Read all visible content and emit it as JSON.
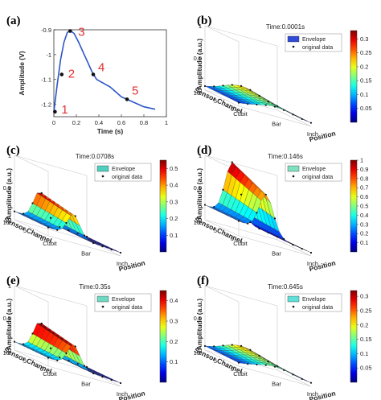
{
  "chart_data": [
    {
      "panel": "(a)",
      "type": "line",
      "xlabel": "Time (s)",
      "ylabel": "Amplitude (V)",
      "xlim": [
        0,
        1
      ],
      "ylim": [
        -1.25,
        -0.9
      ],
      "xticks": [
        "0",
        "0.2",
        "0.4",
        "0.6",
        "0.8",
        "1"
      ],
      "yticks": [
        "-0.9",
        "-1",
        "-1.1",
        "-1.2"
      ],
      "series": [
        {
          "x": [
            0.0,
            0.03,
            0.06,
            0.09,
            0.12,
            0.15,
            0.18,
            0.22,
            0.26,
            0.3,
            0.34,
            0.38,
            0.42,
            0.46,
            0.5,
            0.55,
            0.6,
            0.65,
            0.7,
            0.75,
            0.8,
            0.85,
            0.9
          ],
          "values": [
            -1.23,
            -1.12,
            -1.02,
            -0.95,
            -0.91,
            -0.905,
            -0.915,
            -0.95,
            -0.99,
            -1.03,
            -1.07,
            -1.1,
            -1.11,
            -1.12,
            -1.13,
            -1.15,
            -1.17,
            -1.18,
            -1.19,
            -1.2,
            -1.21,
            -1.215,
            -1.22
          ]
        }
      ],
      "points": [
        {
          "label": "1",
          "x": 0.01,
          "y": -1.23
        },
        {
          "label": "2",
          "x": 0.07,
          "y": -1.08
        },
        {
          "label": "3",
          "x": 0.145,
          "y": -0.905
        },
        {
          "label": "4",
          "x": 0.35,
          "y": -1.08
        },
        {
          "label": "5",
          "x": 0.65,
          "y": -1.18
        }
      ],
      "line_color": "#2d55c8",
      "label_color": "#e03030"
    },
    {
      "panel": "(b)",
      "type": "surface",
      "title": "Time:0.0001s",
      "xlabel": "Position",
      "ylabel": "Sensor Channel",
      "zlabel": "Amplitude (a.u.)",
      "x_ticklabels": [
        "Cubit",
        "Bar",
        "Inch"
      ],
      "y_ticks": [
        "0",
        "5",
        "10"
      ],
      "z_ticks": [
        "0",
        "0.5",
        "1"
      ],
      "colorbar_ticks": [
        "0.05",
        "0.1",
        "0.15",
        "0.2",
        "0.25",
        "0.3"
      ],
      "clim": [
        0,
        0.33
      ],
      "legend": [
        "Envelope",
        "original data"
      ],
      "envelope_color": "#2f4ad8",
      "shape": "low"
    },
    {
      "panel": "(c)",
      "type": "surface",
      "title": "Time:0.0708s",
      "xlabel": "Position",
      "ylabel": "Sensor Channel",
      "zlabel": "Amplitude (a.u.)",
      "x_ticklabels": [
        "Cubit",
        "Bar",
        "Inch"
      ],
      "y_ticks": [
        "0",
        "5",
        "10"
      ],
      "z_ticks": [
        "0",
        "0.5",
        "1"
      ],
      "colorbar_ticks": [
        "0.1",
        "0.2",
        "0.3",
        "0.4",
        "0.5"
      ],
      "clim": [
        0,
        0.55
      ],
      "legend": [
        "Envelope",
        "original data"
      ],
      "envelope_color": "#4ecfc0",
      "shape": "ridge"
    },
    {
      "panel": "(d)",
      "type": "surface",
      "title": "Time:0.146s",
      "xlabel": "Position",
      "ylabel": "Sensor Channel",
      "zlabel": "Amplitude (a.u.)",
      "x_ticklabels": [
        "Cubit",
        "Bar",
        "Inch"
      ],
      "y_ticks": [
        "0",
        "5",
        "10"
      ],
      "z_ticks": [
        "0",
        "0.5",
        "1"
      ],
      "colorbar_ticks": [
        "0.1",
        "0.2",
        "0.3",
        "0.4",
        "0.5",
        "0.6",
        "0.7",
        "0.8",
        "0.9",
        "1"
      ],
      "clim": [
        0,
        1
      ],
      "legend": [
        "Envelope",
        "original data"
      ],
      "envelope_color": "#7fe0c0",
      "shape": "tall"
    },
    {
      "panel": "(e)",
      "type": "surface",
      "title": "Time:0.35s",
      "xlabel": "Position",
      "ylabel": "Sensor Channel",
      "zlabel": "Amplitude (a.u.)",
      "x_ticklabels": [
        "Cubit",
        "Bar",
        "Inch"
      ],
      "y_ticks": [
        "0",
        "5",
        "10"
      ],
      "z_ticks": [
        "0",
        "0.5",
        "1"
      ],
      "colorbar_ticks": [
        "0.1",
        "0.2",
        "0.3",
        "0.4"
      ],
      "clim": [
        0,
        0.45
      ],
      "legend": [
        "Envelope",
        "original data"
      ],
      "envelope_color": "#6fd8c0",
      "shape": "ridge"
    },
    {
      "panel": "(f)",
      "type": "surface",
      "title": "Time:0.645s",
      "xlabel": "Position",
      "ylabel": "Sensor Channel",
      "zlabel": "Amplitude (a.u.)",
      "x_ticklabels": [
        "Cubit",
        "Bar",
        "Inch"
      ],
      "y_ticks": [
        "0",
        "5",
        "10"
      ],
      "z_ticks": [
        "0",
        "0.5",
        "1"
      ],
      "colorbar_ticks": [
        "0.05",
        "0.1",
        "0.15",
        "0.2",
        "0.25",
        "0.3"
      ],
      "clim": [
        0,
        0.32
      ],
      "legend": [
        "Envelope",
        "original data"
      ],
      "envelope_color": "#5ee0d8",
      "shape": "low"
    }
  ]
}
